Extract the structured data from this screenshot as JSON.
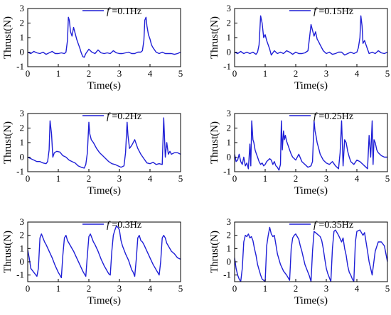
{
  "chart_data": [
    {
      "type": "line",
      "series": [
        {
          "name": "f=0.1Hz",
          "color": "#1f1fd6",
          "x": [
            0,
            0.1,
            0.2,
            0.3,
            0.4,
            0.5,
            0.6,
            0.7,
            0.8,
            0.9,
            1.0,
            1.1,
            1.2,
            1.25,
            1.3,
            1.33,
            1.36,
            1.4,
            1.45,
            1.5,
            1.55,
            1.6,
            1.65,
            1.7,
            1.75,
            1.8,
            1.85,
            1.9,
            2.0,
            2.1,
            2.2,
            2.3,
            2.4,
            2.5,
            2.6,
            2.7,
            2.8,
            2.9,
            3.0,
            3.1,
            3.2,
            3.3,
            3.4,
            3.5,
            3.6,
            3.7,
            3.75,
            3.8,
            3.83,
            3.87,
            3.9,
            3.95,
            4.0,
            4.05,
            4.1,
            4.2,
            4.3,
            4.4,
            4.5,
            4.6,
            4.7,
            4.8,
            4.9,
            5.0
          ],
          "y": [
            0,
            -0.1,
            0.05,
            -0.05,
            -0.1,
            0.0,
            -0.15,
            -0.05,
            0.05,
            -0.1,
            -0.1,
            -0.05,
            -0.1,
            0.0,
            0.8,
            2.4,
            2.2,
            1.4,
            1.1,
            1.7,
            1.3,
            0.9,
            0.6,
            0.3,
            -0.05,
            -0.3,
            -0.35,
            -0.1,
            0.2,
            0.0,
            -0.1,
            0.15,
            -0.05,
            -0.1,
            -0.05,
            -0.1,
            0.1,
            -0.05,
            -0.1,
            -0.1,
            -0.05,
            0.0,
            -0.1,
            -0.1,
            0.0,
            0.0,
            0.1,
            0.8,
            2.2,
            2.4,
            1.8,
            1.2,
            0.9,
            0.5,
            0.3,
            0.0,
            -0.1,
            0.0,
            -0.1,
            -0.1,
            -0.1,
            -0.15,
            -0.1,
            0.0
          ]
        }
      ],
      "xlabel": "Time(s)",
      "ylabel": "Thrust(N)",
      "xlim": [
        0,
        5
      ],
      "ylim": [
        -1,
        3
      ],
      "xticks": [
        0,
        1,
        2,
        3,
        4,
        5
      ],
      "yticks": [
        -1,
        0,
        1,
        2,
        3
      ],
      "legend": {
        "prefix": "f",
        "text": " =0.1Hz"
      },
      "legend_position": "top-right"
    },
    {
      "type": "line",
      "series": [
        {
          "name": "f=0.15Hz",
          "color": "#1f1fd6",
          "x": [
            0,
            0.1,
            0.2,
            0.3,
            0.4,
            0.5,
            0.6,
            0.7,
            0.75,
            0.8,
            0.85,
            0.9,
            0.95,
            1.0,
            1.05,
            1.1,
            1.15,
            1.2,
            1.3,
            1.4,
            1.5,
            1.6,
            1.7,
            1.8,
            1.9,
            2.0,
            2.1,
            2.2,
            2.3,
            2.4,
            2.45,
            2.5,
            2.55,
            2.6,
            2.65,
            2.7,
            2.75,
            2.8,
            2.9,
            3.0,
            3.1,
            3.2,
            3.3,
            3.4,
            3.5,
            3.6,
            3.7,
            3.8,
            3.9,
            4.0,
            4.05,
            4.1,
            4.13,
            4.17,
            4.2,
            4.25,
            4.3,
            4.35,
            4.4,
            4.5,
            4.6,
            4.7,
            4.8,
            4.9,
            5.0
          ],
          "y": [
            0.0,
            -0.1,
            0.05,
            -0.1,
            0.0,
            -0.1,
            0.0,
            -0.15,
            0.0,
            0.5,
            2.5,
            2.0,
            1.0,
            1.2,
            0.8,
            0.5,
            0.2,
            -0.2,
            0.1,
            -0.1,
            0.0,
            -0.1,
            0.1,
            0.0,
            -0.15,
            0.0,
            -0.1,
            -0.1,
            -0.05,
            0.1,
            1.0,
            1.9,
            1.5,
            1.1,
            1.4,
            0.9,
            0.7,
            0.5,
            0.1,
            -0.1,
            0.0,
            -0.15,
            -0.1,
            0.0,
            0.0,
            -0.2,
            -0.1,
            0.0,
            -0.1,
            0.0,
            0.3,
            1.0,
            2.5,
            1.8,
            0.6,
            0.8,
            0.5,
            0.2,
            -0.1,
            0.0,
            -0.1,
            0.1,
            -0.05,
            -0.1,
            0.0
          ]
        }
      ],
      "xlabel": "Time(s)",
      "ylabel": "Thrust(N)",
      "xlim": [
        0,
        5
      ],
      "ylim": [
        -1,
        3
      ],
      "xticks": [
        0,
        1,
        2,
        3,
        4,
        5
      ],
      "yticks": [
        -1,
        0,
        1,
        2,
        3
      ],
      "legend": {
        "prefix": "f",
        "text": " =0.15Hz"
      },
      "legend_position": "top-right"
    },
    {
      "type": "line",
      "series": [
        {
          "name": "f=0.2Hz",
          "color": "#1f1fd6",
          "x": [
            0,
            0.1,
            0.2,
            0.3,
            0.4,
            0.5,
            0.6,
            0.65,
            0.7,
            0.73,
            0.78,
            0.82,
            0.87,
            0.95,
            1.05,
            1.15,
            1.25,
            1.35,
            1.45,
            1.55,
            1.65,
            1.75,
            1.85,
            1.9,
            1.95,
            2.0,
            2.03,
            2.08,
            2.15,
            2.25,
            2.35,
            2.45,
            2.55,
            2.65,
            2.75,
            2.85,
            2.95,
            3.05,
            3.15,
            3.2,
            3.25,
            3.28,
            3.33,
            3.4,
            3.5,
            3.6,
            3.7,
            3.8,
            3.9,
            4.0,
            4.1,
            4.2,
            4.3,
            4.4,
            4.45,
            4.5,
            4.55,
            4.6,
            4.65,
            4.7,
            4.8,
            4.9,
            5.0
          ],
          "y": [
            0,
            -0.1,
            -0.2,
            -0.3,
            -0.3,
            -0.4,
            -0.45,
            -0.3,
            0.5,
            2.5,
            1.6,
            0.0,
            0.3,
            0.4,
            0.35,
            0.1,
            0.0,
            -0.2,
            -0.3,
            -0.4,
            -0.6,
            -0.7,
            -0.75,
            -0.5,
            0.3,
            2.4,
            1.6,
            1.2,
            1.0,
            0.6,
            0.3,
            0.1,
            -0.1,
            -0.3,
            -0.45,
            -0.5,
            -0.6,
            -0.7,
            -0.6,
            0.3,
            2.4,
            1.5,
            0.6,
            0.8,
            1.2,
            0.6,
            0.2,
            -0.1,
            -0.4,
            -0.45,
            -0.35,
            -0.5,
            -0.45,
            -0.5,
            2.7,
            0.0,
            1.0,
            0.2,
            0.4,
            0.2,
            0.3,
            0.3,
            0.2
          ]
        }
      ],
      "xlabel": "Time(s)",
      "ylabel": "Thrust(N)",
      "xlim": [
        0,
        5
      ],
      "ylim": [
        -1,
        3
      ],
      "xticks": [
        0,
        1,
        2,
        3,
        4,
        5
      ],
      "yticks": [
        -1,
        0,
        1,
        2,
        3
      ],
      "legend": {
        "prefix": "f",
        "text": " =0.2Hz"
      },
      "legend_position": "top-right"
    },
    {
      "type": "line",
      "series": [
        {
          "name": "f=0.25Hz",
          "color": "#1f1fd6",
          "x": [
            0,
            0.05,
            0.1,
            0.15,
            0.2,
            0.25,
            0.3,
            0.35,
            0.4,
            0.45,
            0.5,
            0.53,
            0.56,
            0.6,
            0.63,
            0.67,
            0.7,
            0.75,
            0.8,
            0.85,
            0.9,
            0.95,
            1.0,
            1.05,
            1.1,
            1.15,
            1.2,
            1.25,
            1.3,
            1.35,
            1.4,
            1.45,
            1.5,
            1.53,
            1.56,
            1.6,
            1.63,
            1.66,
            1.7,
            1.75,
            1.8,
            1.85,
            1.9,
            2.0,
            2.1,
            2.2,
            2.3,
            2.4,
            2.5,
            2.55,
            2.6,
            2.63,
            2.66,
            2.7,
            2.75,
            2.8,
            2.9,
            3.0,
            3.1,
            3.2,
            3.3,
            3.4,
            3.45,
            3.5,
            3.55,
            3.6,
            3.65,
            3.7,
            3.75,
            3.8,
            3.9,
            4.0,
            4.1,
            4.2,
            4.3,
            4.35,
            4.4,
            4.45,
            4.5,
            4.53,
            4.56,
            4.6,
            4.65,
            4.7,
            4.8,
            4.9,
            5.0
          ],
          "y": [
            0.2,
            -0.3,
            -0.2,
            0.2,
            -0.3,
            -0.5,
            0.0,
            -0.6,
            -0.4,
            -0.8,
            0.9,
            -0.6,
            2.5,
            1.2,
            1.0,
            0.5,
            0.3,
            0.0,
            -0.3,
            -0.5,
            -0.4,
            -0.6,
            -0.5,
            -0.3,
            -0.2,
            -0.1,
            -0.2,
            -0.5,
            -0.3,
            -0.6,
            -0.7,
            -0.9,
            -0.5,
            2.5,
            0.5,
            1.8,
            1.2,
            1.5,
            1.1,
            0.8,
            0.5,
            0.2,
            0.0,
            -0.2,
            0.2,
            -0.3,
            -0.5,
            -0.7,
            -0.6,
            -0.3,
            2.5,
            1.8,
            1.5,
            1.0,
            0.6,
            0.2,
            -0.2,
            -0.4,
            -0.5,
            -0.3,
            -0.6,
            -0.8,
            0.3,
            2.5,
            -0.6,
            1.2,
            1.0,
            0.4,
            0.0,
            -0.3,
            -0.5,
            -0.2,
            -0.3,
            -0.5,
            -0.7,
            -0.8,
            1.5,
            0.0,
            2.5,
            -0.5,
            1.2,
            1.0,
            0.5,
            0.3,
            0.1,
            0.0,
            0.0
          ]
        }
      ],
      "xlabel": "Time(s)",
      "ylabel": "Thrust(N)",
      "xlim": [
        0,
        5
      ],
      "ylim": [
        -1,
        3
      ],
      "xticks": [
        0,
        1,
        2,
        3,
        4,
        5
      ],
      "yticks": [
        -1,
        0,
        1,
        2,
        3
      ],
      "legend": {
        "prefix": "f",
        "text": " =0.25Hz"
      },
      "legend_position": "top-right"
    },
    {
      "type": "line",
      "series": [
        {
          "name": "f=0.3Hz",
          "color": "#1f1fd6",
          "x": [
            0,
            0.05,
            0.1,
            0.2,
            0.3,
            0.35,
            0.4,
            0.45,
            0.5,
            0.55,
            0.6,
            0.7,
            0.8,
            0.9,
            1.0,
            1.05,
            1.1,
            1.15,
            1.2,
            1.25,
            1.3,
            1.35,
            1.4,
            1.5,
            1.6,
            1.7,
            1.8,
            1.85,
            1.9,
            1.95,
            2.0,
            2.05,
            2.1,
            2.15,
            2.2,
            2.3,
            2.4,
            2.5,
            2.6,
            2.65,
            2.7,
            2.75,
            2.8,
            2.85,
            2.9,
            2.95,
            3.0,
            3.05,
            3.1,
            3.2,
            3.3,
            3.4,
            3.45,
            3.5,
            3.55,
            3.6,
            3.65,
            3.7,
            3.75,
            3.8,
            3.9,
            4.0,
            4.1,
            4.2,
            4.25,
            4.3,
            4.35,
            4.4,
            4.45,
            4.5,
            4.55,
            4.6,
            4.7,
            4.8,
            4.9,
            5.0
          ],
          "y": [
            0.9,
            0.3,
            -0.5,
            -0.8,
            -1.1,
            -0.5,
            1.8,
            2.1,
            1.8,
            1.5,
            1.3,
            0.8,
            0.3,
            -0.3,
            -0.8,
            -1.0,
            -1.2,
            0.5,
            1.8,
            2.0,
            1.6,
            1.4,
            1.2,
            0.8,
            0.3,
            -0.2,
            -0.7,
            -0.9,
            -1.1,
            0.5,
            1.9,
            2.1,
            1.8,
            1.5,
            1.3,
            0.8,
            0.2,
            -0.3,
            -0.7,
            -0.9,
            -1.0,
            0.8,
            2.0,
            2.4,
            2.7,
            2.6,
            2.4,
            1.6,
            1.2,
            0.6,
            0.1,
            -0.6,
            -0.8,
            -1.1,
            0.2,
            1.8,
            2.0,
            1.6,
            1.5,
            1.3,
            0.8,
            0.3,
            -0.2,
            -0.6,
            -0.8,
            -1.0,
            0.0,
            1.8,
            2.0,
            1.8,
            1.4,
            1.2,
            0.8,
            0.6,
            0.3,
            0.2
          ]
        }
      ],
      "xlabel": "Time(s)",
      "ylabel": "Thrust(N)",
      "xlim": [
        0,
        5
      ],
      "ylim": [
        -1.5,
        3
      ],
      "xticks": [
        0,
        1,
        2,
        3,
        4,
        5
      ],
      "yticks": [
        -1,
        0,
        1,
        2,
        3
      ],
      "legend": {
        "prefix": "f",
        "text": " =0.3Hz"
      },
      "legend_position": "top-right"
    },
    {
      "type": "line",
      "series": [
        {
          "name": "f=0.35Hz",
          "color": "#1f1fd6",
          "x": [
            0,
            0.05,
            0.1,
            0.15,
            0.2,
            0.25,
            0.3,
            0.35,
            0.4,
            0.45,
            0.5,
            0.55,
            0.6,
            0.65,
            0.7,
            0.75,
            0.8,
            0.85,
            0.9,
            0.95,
            1.0,
            1.05,
            1.1,
            1.15,
            1.2,
            1.25,
            1.3,
            1.35,
            1.4,
            1.5,
            1.6,
            1.7,
            1.75,
            1.8,
            1.85,
            1.9,
            1.95,
            2.0,
            2.05,
            2.1,
            2.15,
            2.2,
            2.3,
            2.4,
            2.45,
            2.5,
            2.55,
            2.6,
            2.7,
            2.8,
            2.85,
            2.9,
            2.95,
            3.0,
            3.05,
            3.1,
            3.15,
            3.2,
            3.25,
            3.3,
            3.4,
            3.5,
            3.55,
            3.6,
            3.65,
            3.7,
            3.75,
            3.8,
            3.85,
            3.9,
            3.95,
            4.0,
            4.1,
            4.2,
            4.25,
            4.3,
            4.35,
            4.4,
            4.45,
            4.5,
            4.6,
            4.7,
            4.8,
            4.9,
            5.0
          ],
          "y": [
            0.3,
            -0.5,
            -1.0,
            -1.3,
            -1.5,
            -0.5,
            1.5,
            2.0,
            1.9,
            2.1,
            1.8,
            1.9,
            1.6,
            1.0,
            0.5,
            -0.2,
            -0.6,
            -1.0,
            -1.3,
            -1.4,
            -1.5,
            1.2,
            2.0,
            2.6,
            2.1,
            1.9,
            2.0,
            1.3,
            0.6,
            -0.2,
            -0.7,
            -1.0,
            -1.2,
            -1.4,
            1.0,
            1.8,
            2.0,
            2.1,
            1.9,
            1.7,
            1.2,
            0.8,
            -0.2,
            -0.8,
            -1.1,
            -1.5,
            0.8,
            2.3,
            2.1,
            1.9,
            1.6,
            1.0,
            0.2,
            -0.5,
            -0.9,
            -1.2,
            -1.5,
            1.0,
            2.3,
            2.4,
            2.0,
            1.5,
            1.8,
            1.0,
            0.5,
            -0.3,
            -0.8,
            -1.0,
            -1.3,
            -1.5,
            1.5,
            2.3,
            2.4,
            2.0,
            2.2,
            1.5,
            0.8,
            0.0,
            -0.5,
            -1.0,
            0.8,
            1.5,
            1.5,
            1.2,
            0.0
          ]
        }
      ],
      "xlabel": "Time(s)",
      "ylabel": "Thrust(N)",
      "xlim": [
        0,
        5
      ],
      "ylim": [
        -1.5,
        3
      ],
      "xticks": [
        0,
        1,
        2,
        3,
        4,
        5
      ],
      "yticks": [
        -1,
        0,
        1,
        2,
        3
      ],
      "legend": {
        "prefix": "f",
        "text": " =0.35Hz"
      },
      "legend_position": "top-right"
    }
  ]
}
